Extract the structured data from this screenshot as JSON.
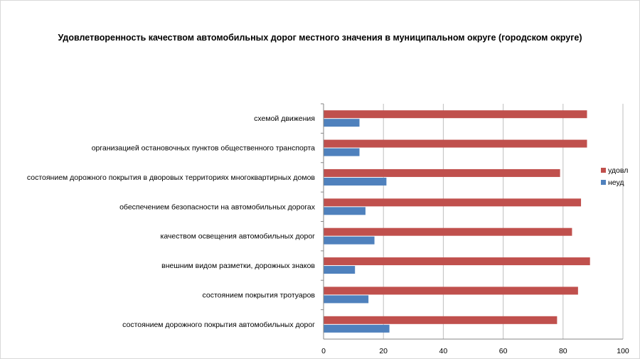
{
  "chart_data": {
    "type": "bar",
    "orientation": "horizontal",
    "title": "Удовлетворенность качеством автомобильных дорог местного значения в муниципальном округе (городском округе)",
    "categories": [
      "схемой движения",
      "организацией остановочных пунктов общественного транспорта",
      "состоянием дорожного покрытия в дворовых территориях многоквартирных домов",
      "обеспечением безопасности на автомобильных дорогах",
      "качеством освещения автомобильных дорог",
      "внешним видом разметки, дорожных знаков",
      "состоянием покрытия тротуаров",
      "состоянием дорожного покрытия автомобильных дорог"
    ],
    "series": [
      {
        "name": "удовл",
        "color": "#c0504d",
        "values": [
          88,
          88,
          79,
          86,
          83,
          89,
          85,
          78
        ]
      },
      {
        "name": "неуд",
        "color": "#4f81bd",
        "values": [
          12,
          12,
          21,
          14,
          17,
          10.5,
          15,
          22
        ]
      }
    ],
    "xlim": [
      0,
      100
    ],
    "xticks": [
      "0",
      "20",
      "40",
      "60",
      "80",
      "100"
    ],
    "grid": "vertical",
    "legend_position": "right"
  }
}
